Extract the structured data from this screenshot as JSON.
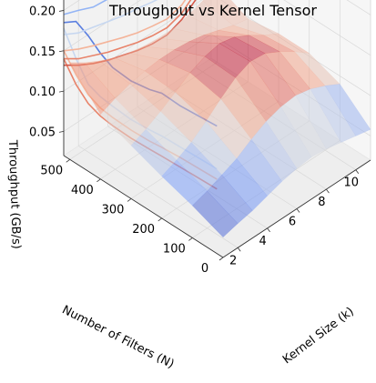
{
  "chart_data": {
    "type": "surface",
    "title": "Throughput vs Kernel Tensor",
    "xlabel": "Kernel Size (k)",
    "ylabel": "Number of Filters (N)",
    "zlabel": "Throughput (GB/s)",
    "xlim": [
      1,
      11
    ],
    "ylim": [
      0,
      520
    ],
    "zlim": [
      0.02,
      0.24
    ],
    "x_ticks": [
      "2",
      "4",
      "6",
      "8",
      "10"
    ],
    "y_ticks": [
      "0",
      "100",
      "200",
      "300",
      "400",
      "500"
    ],
    "z_ticks": [
      "0.05",
      "0.10",
      "0.15",
      "0.20"
    ],
    "colormap": "coolwarm",
    "grid": true,
    "surface_x": [
      1,
      2,
      3,
      4,
      5,
      6,
      7,
      8,
      9,
      10,
      11
    ],
    "surface_y": [
      0,
      100,
      200,
      300,
      400,
      500
    ],
    "surface_z": [
      [
        0.045,
        0.05,
        0.054,
        0.06,
        0.066,
        0.07,
        0.072,
        0.07,
        0.066,
        0.062,
        0.058
      ],
      [
        0.06,
        0.066,
        0.074,
        0.082,
        0.094,
        0.104,
        0.11,
        0.112,
        0.108,
        0.1,
        0.09
      ],
      [
        0.072,
        0.08,
        0.09,
        0.104,
        0.12,
        0.134,
        0.142,
        0.14,
        0.13,
        0.118,
        0.104
      ],
      [
        0.086,
        0.094,
        0.104,
        0.116,
        0.128,
        0.136,
        0.14,
        0.136,
        0.126,
        0.114,
        0.104
      ],
      [
        0.1,
        0.108,
        0.114,
        0.118,
        0.12,
        0.12,
        0.118,
        0.114,
        0.108,
        0.102,
        0.098
      ],
      [
        0.14,
        0.128,
        0.118,
        0.11,
        0.104,
        0.1,
        0.098,
        0.098,
        0.102,
        0.108,
        0.116
      ]
    ],
    "wall_x_series": [
      {
        "color": "#5b7fe0",
        "x": [
          1,
          2,
          3,
          4,
          5,
          6,
          7,
          8,
          9,
          10,
          11
        ],
        "z": [
          0.235,
          0.226,
          0.228,
          0.22,
          0.215,
          0.216,
          0.214,
          0.213,
          0.205,
          0.214,
          0.213
        ]
      },
      {
        "color": "#93b4f5",
        "x": [
          1,
          2,
          3,
          4,
          5,
          6,
          7,
          8,
          9,
          10,
          11
        ],
        "z": [
          0.195,
          0.188,
          0.18,
          0.178,
          0.172,
          0.17,
          0.168,
          0.165,
          0.15,
          0.175,
          0.176
        ]
      },
      {
        "color": "#c7d7f0",
        "x": [
          1,
          2,
          3,
          4,
          5,
          6,
          7,
          8,
          9,
          10,
          11
        ],
        "z": [
          0.17,
          0.16,
          0.155,
          0.15,
          0.145,
          0.142,
          0.138,
          0.135,
          0.13,
          0.14,
          0.15
        ]
      },
      {
        "color": "#f4b49a",
        "x": [
          1,
          2,
          3,
          4,
          5,
          6,
          7,
          8,
          9,
          10,
          11
        ],
        "z": [
          0.15,
          0.14,
          0.132,
          0.125,
          0.118,
          0.112,
          0.108,
          0.105,
          0.11,
          0.125,
          0.14
        ]
      },
      {
        "color": "#e8836a",
        "x": [
          1,
          2,
          3,
          4,
          5,
          6,
          7,
          8,
          9,
          10,
          11
        ],
        "z": [
          0.14,
          0.128,
          0.12,
          0.112,
          0.106,
          0.1,
          0.096,
          0.094,
          0.1,
          0.115,
          0.132
        ]
      },
      {
        "color": "#d4584a",
        "x": [
          1,
          2,
          3,
          4,
          5,
          6,
          7,
          8,
          9,
          10,
          11
        ],
        "z": [
          0.132,
          0.12,
          0.11,
          0.102,
          0.096,
          0.09,
          0.086,
          0.085,
          0.092,
          0.106,
          0.125
        ]
      }
    ],
    "wall_y_series": [
      {
        "color": "#5b7fe0",
        "y": [
          520,
          480,
          440,
          400,
          360,
          300,
          240,
          200,
          140,
          80,
          20
        ],
        "z": [
          0.185,
          0.196,
          0.188,
          0.176,
          0.168,
          0.166,
          0.17,
          0.175,
          0.174,
          0.176,
          0.178
        ]
      },
      {
        "color": "#c7d7f0",
        "y": [
          520,
          480,
          440,
          400,
          360,
          300,
          240,
          200,
          140,
          80,
          20
        ],
        "z": [
          0.178,
          0.15,
          0.128,
          0.122,
          0.12,
          0.118,
          0.12,
          0.122,
          0.123,
          0.124,
          0.125
        ]
      },
      {
        "color": "#f4b49a",
        "y": [
          520,
          480,
          440,
          400,
          360,
          300,
          240,
          200,
          140,
          80,
          20
        ],
        "z": [
          0.15,
          0.13,
          0.115,
          0.108,
          0.106,
          0.105,
          0.106,
          0.108,
          0.11,
          0.111,
          0.112
        ]
      },
      {
        "color": "#e8836a",
        "y": [
          520,
          480,
          440,
          400,
          360,
          300,
          240,
          200,
          140,
          80,
          20
        ],
        "z": [
          0.14,
          0.118,
          0.104,
          0.098,
          0.096,
          0.095,
          0.096,
          0.097,
          0.098,
          0.099,
          0.1
        ]
      }
    ]
  }
}
